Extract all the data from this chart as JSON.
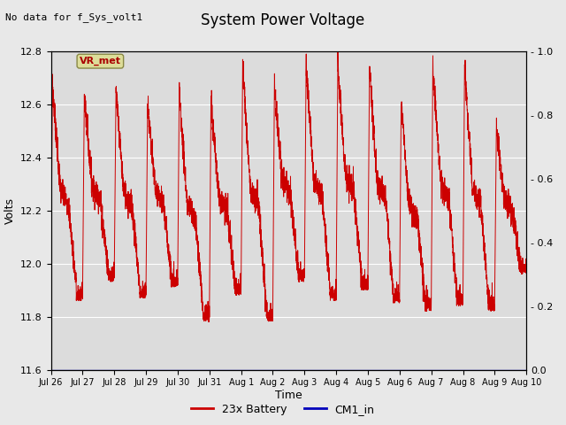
{
  "title": "System Power Voltage",
  "top_left_note": "No data for f_Sys_volt1",
  "xlabel": "Time",
  "ylabel": "Volts",
  "ylim_left": [
    11.6,
    12.8
  ],
  "ylim_right": [
    0.0,
    1.0
  ],
  "yticks_left": [
    11.6,
    11.8,
    12.0,
    12.2,
    12.4,
    12.6,
    12.8
  ],
  "yticks_right": [
    0.0,
    0.2,
    0.4,
    0.6,
    0.8,
    1.0
  ],
  "xtick_labels": [
    "Jul 26",
    "Jul 27",
    "Jul 28",
    "Jul 29",
    "Jul 30",
    "Jul 31",
    "Aug 1",
    "Aug 2",
    "Aug 3",
    "Aug 4",
    "Aug 5",
    "Aug 6",
    "Aug 7",
    "Aug 8",
    "Aug 9",
    "Aug 10"
  ],
  "bg_color": "#e8e8e8",
  "plot_bg_color": "#dcdcdc",
  "line_color_battery": "#cc0000",
  "line_color_cm1": "#0000bb",
  "legend_label_battery": "23x Battery",
  "legend_label_cm1": "CM1_in",
  "vr_met_label": "VR_met",
  "vr_met_box_color": "#dddd99",
  "vr_met_text_color": "#aa0000",
  "title_fontsize": 12,
  "label_fontsize": 9,
  "tick_fontsize": 8,
  "note_fontsize": 8
}
